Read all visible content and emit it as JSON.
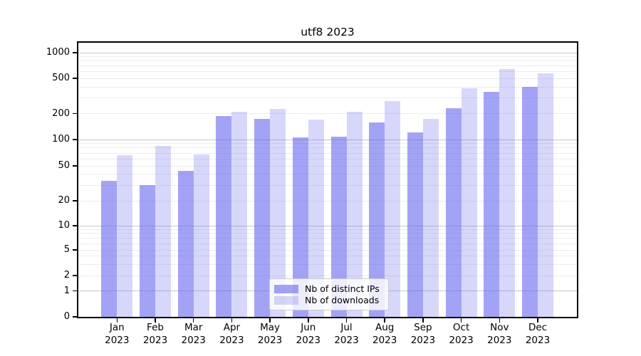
{
  "chart_data": {
    "type": "bar",
    "title": "utf8 2023",
    "categories": [
      "Jan",
      "Feb",
      "Mar",
      "Apr",
      "May",
      "Jun",
      "Jul",
      "Aug",
      "Sep",
      "Oct",
      "Nov",
      "Dec"
    ],
    "year_label": "2023",
    "series": [
      {
        "name": "Nb of distinct IPs",
        "color": "rgba(102,102,238,0.60)",
        "values": [
          34,
          30,
          44,
          188,
          175,
          105,
          108,
          158,
          121,
          230,
          355,
          400
        ]
      },
      {
        "name": "Nb of downloads",
        "color": "rgba(102,102,238,0.26)",
        "values": [
          66,
          84,
          68,
          210,
          227,
          169,
          210,
          275,
          172,
          385,
          645,
          572
        ]
      }
    ],
    "y_axis": {
      "scale": "log-like (compressed below 10, 0 shown at baseline)",
      "ticks": [
        0,
        1,
        2,
        5,
        10,
        20,
        50,
        100,
        200,
        500,
        1000
      ],
      "major_gridlines": [
        1,
        10,
        100,
        1000
      ],
      "range": [
        0,
        1300
      ]
    },
    "x_axis": {
      "tick_label_format": "Month over 2023"
    },
    "legend": {
      "position": "inside-bottom-center"
    },
    "grid": true
  },
  "colors": {
    "bar_dark": "rgba(102,102,238,0.60)",
    "bar_light": "rgba(102,102,238,0.26)",
    "major_grid": "#c8c8c8",
    "minor_grid": "#ececec",
    "axis": "#000000",
    "background": "#ffffff",
    "legend_border": "#cccccc"
  }
}
